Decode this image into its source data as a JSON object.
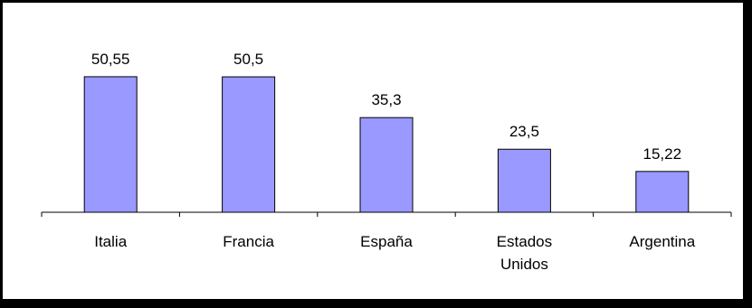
{
  "chart_data": {
    "type": "bar",
    "categories": [
      "Italia",
      "Francia",
      "España",
      "Estados Unidos",
      "Argentina"
    ],
    "category_lines": [
      [
        "Italia"
      ],
      [
        "Francia"
      ],
      [
        "España"
      ],
      [
        "Estados",
        "Unidos"
      ],
      [
        "Argentina"
      ]
    ],
    "values": [
      50.55,
      50.5,
      35.3,
      23.5,
      15.22
    ],
    "value_labels": [
      "50,55",
      "50,5",
      "35,3",
      "23,5",
      "15,22"
    ],
    "title": "",
    "xlabel": "",
    "ylabel": "",
    "ylim": [
      0,
      64
    ],
    "grid": false,
    "legend": "none",
    "colors": {
      "bar_fill": "#9999ff",
      "bar_stroke": "#000000",
      "axis": "#000000",
      "frame": "#000000",
      "background": "#ffffff"
    }
  }
}
